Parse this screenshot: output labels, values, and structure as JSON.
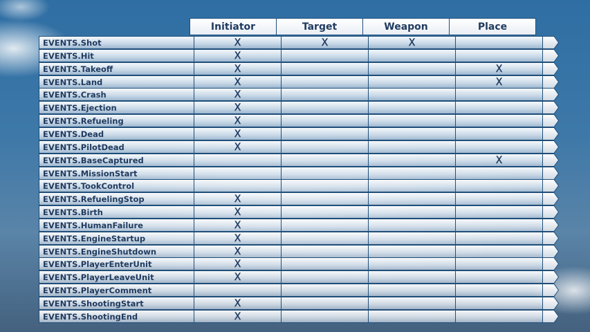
{
  "columns": [
    "Initiator",
    "Target",
    "Weapon",
    "Place"
  ],
  "mark": "X",
  "rows": [
    {
      "event": "EVENTS.Shot",
      "marks": [
        true,
        true,
        true,
        false
      ]
    },
    {
      "event": "EVENTS.Hit",
      "marks": [
        true,
        false,
        false,
        false
      ]
    },
    {
      "event": "EVENTS.Takeoff",
      "marks": [
        true,
        false,
        false,
        true
      ]
    },
    {
      "event": "EVENTS.Land",
      "marks": [
        true,
        false,
        false,
        true
      ]
    },
    {
      "event": "EVENTS.Crash",
      "marks": [
        true,
        false,
        false,
        false
      ]
    },
    {
      "event": "EVENTS.Ejection",
      "marks": [
        true,
        false,
        false,
        false
      ]
    },
    {
      "event": "EVENTS.Refueling",
      "marks": [
        true,
        false,
        false,
        false
      ]
    },
    {
      "event": "EVENTS.Dead",
      "marks": [
        true,
        false,
        false,
        false
      ]
    },
    {
      "event": "EVENTS.PilotDead",
      "marks": [
        true,
        false,
        false,
        false
      ]
    },
    {
      "event": "EVENTS.BaseCaptured",
      "marks": [
        false,
        false,
        false,
        true
      ]
    },
    {
      "event": "EVENTS.MissionStart",
      "marks": [
        false,
        false,
        false,
        false
      ]
    },
    {
      "event": "EVENTS.TookControl",
      "marks": [
        false,
        false,
        false,
        false
      ]
    },
    {
      "event": "EVENTS.RefuelingStop",
      "marks": [
        true,
        false,
        false,
        false
      ]
    },
    {
      "event": "EVENTS.Birth",
      "marks": [
        true,
        false,
        false,
        false
      ]
    },
    {
      "event": "EVENTS.HumanFailure",
      "marks": [
        true,
        false,
        false,
        false
      ]
    },
    {
      "event": "EVENTS.EngineStartup",
      "marks": [
        true,
        false,
        false,
        false
      ]
    },
    {
      "event": "EVENTS.EngineShutdown",
      "marks": [
        true,
        false,
        false,
        false
      ]
    },
    {
      "event": "EVENTS.PlayerEnterUnit",
      "marks": [
        true,
        false,
        false,
        false
      ]
    },
    {
      "event": "EVENTS.PlayerLeaveUnit",
      "marks": [
        true,
        false,
        false,
        false
      ]
    },
    {
      "event": "EVENTS.PlayerComment",
      "marks": [
        false,
        false,
        false,
        false
      ]
    },
    {
      "event": "EVENTS.ShootingStart",
      "marks": [
        true,
        false,
        false,
        false
      ]
    },
    {
      "event": "EVENTS.ShootingEnd",
      "marks": [
        true,
        false,
        false,
        false
      ]
    }
  ],
  "colors": {
    "border": "#1f4e79",
    "text": "#1f3a5f"
  }
}
